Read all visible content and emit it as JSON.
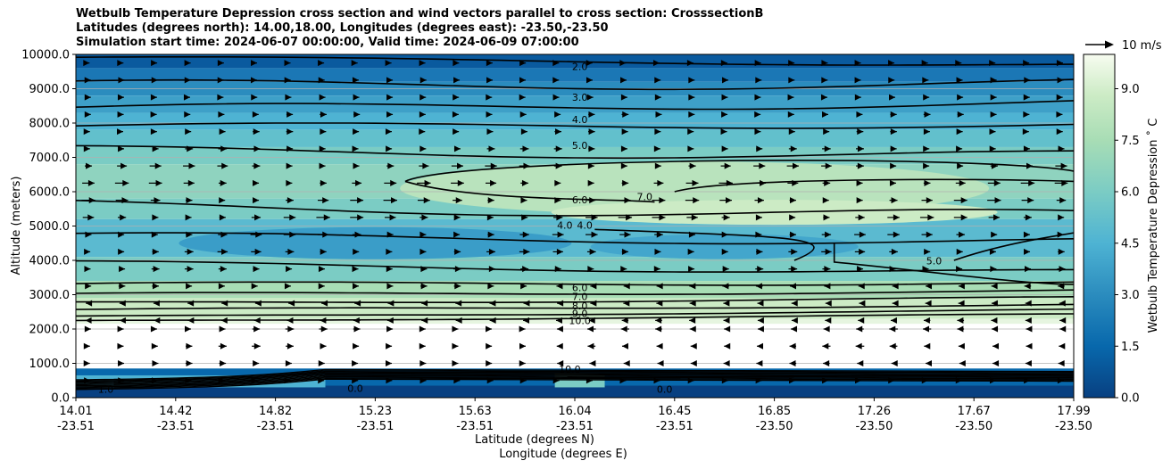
{
  "chart_data": {
    "type": "contour",
    "title_lines": [
      "Wetbulb Temperature Depression cross section and wind vectors parallel to cross section: CrosssectionB",
      "Latitudes (degrees north): 14.00,18.00, Longitudes (degrees east): -23.50,-23.50",
      "Simulation start time: 2024-06-07 00:00:00, Valid time: 2024-06-09 07:00:00"
    ],
    "xlabel_lat": "Latitude (degrees N)",
    "xlabel_lon": "Longitude (degrees E)",
    "ylabel": "Altitude (meters)",
    "ylim": [
      0,
      10000
    ],
    "y_ticks": [
      "0.0",
      "1000.0",
      "2000.0",
      "3000.0",
      "4000.0",
      "5000.0",
      "6000.0",
      "7000.0",
      "8000.0",
      "9000.0",
      "10000.0"
    ],
    "x_ticks_lat": [
      "14.01",
      "14.42",
      "14.82",
      "15.23",
      "15.63",
      "16.04",
      "16.45",
      "16.85",
      "17.26",
      "17.67",
      "17.99"
    ],
    "x_ticks_lon": [
      "-23.51",
      "-23.51",
      "-23.51",
      "-23.51",
      "-23.51",
      "-23.51",
      "-23.51",
      "-23.50",
      "-23.50",
      "-23.50",
      "-23.50"
    ],
    "grid": "horizontal",
    "colorbar": {
      "label": "Wetbulb Temperature Depression ˚ C",
      "min": 0,
      "max": 10,
      "ticks": [
        "0.0",
        "1.5",
        "3.0",
        "4.5",
        "6.0",
        "7.5",
        "9.0"
      ],
      "colormap": "GnBu_r"
    },
    "quiver_key": {
      "label": "10 m/s",
      "speed": 10
    },
    "wind_rows": [
      {
        "alt": 9750,
        "dir": "right",
        "speed": 2
      },
      {
        "alt": 9250,
        "dir": "right",
        "speed": 3
      },
      {
        "alt": 8750,
        "dir": "right",
        "speed": 3
      },
      {
        "alt": 8250,
        "dir": "right",
        "speed": 4
      },
      {
        "alt": 7750,
        "dir": "right",
        "speed": 4
      },
      {
        "alt": 7250,
        "dir": "right",
        "speed": 5
      },
      {
        "alt": 6750,
        "dir": "right",
        "speed": 7
      },
      {
        "alt": 6250,
        "dir": "right",
        "speed": 8
      },
      {
        "alt": 5750,
        "dir": "right",
        "speed": 8
      },
      {
        "alt": 5250,
        "dir": "right",
        "speed": 8
      },
      {
        "alt": 4750,
        "dir": "right",
        "speed": 7
      },
      {
        "alt": 4250,
        "dir": "right",
        "speed": 6
      },
      {
        "alt": 3750,
        "dir": "right",
        "speed": 5
      },
      {
        "alt": 3250,
        "dir": "mixed",
        "speed": 4
      },
      {
        "alt": 2750,
        "dir": "left",
        "speed": 3
      },
      {
        "alt": 2250,
        "dir": "left",
        "speed": 4
      },
      {
        "alt": 2000,
        "dir": "mixed",
        "speed": 5
      },
      {
        "alt": 1500,
        "dir": "mixed",
        "speed": 5
      },
      {
        "alt": 1000,
        "dir": "mixed",
        "speed": 4
      },
      {
        "alt": 500,
        "dir": "right",
        "speed": 3
      }
    ],
    "contour_labels": [
      "2.0",
      "3.0",
      "4.0",
      "5.0",
      "6.0",
      "4.0",
      "4.0",
      "6.0",
      "7.0",
      "8.0",
      "9.0",
      "10.0",
      "10.0",
      "0.0",
      "0.0",
      "1.0",
      "5.0",
      "7.0"
    ]
  }
}
